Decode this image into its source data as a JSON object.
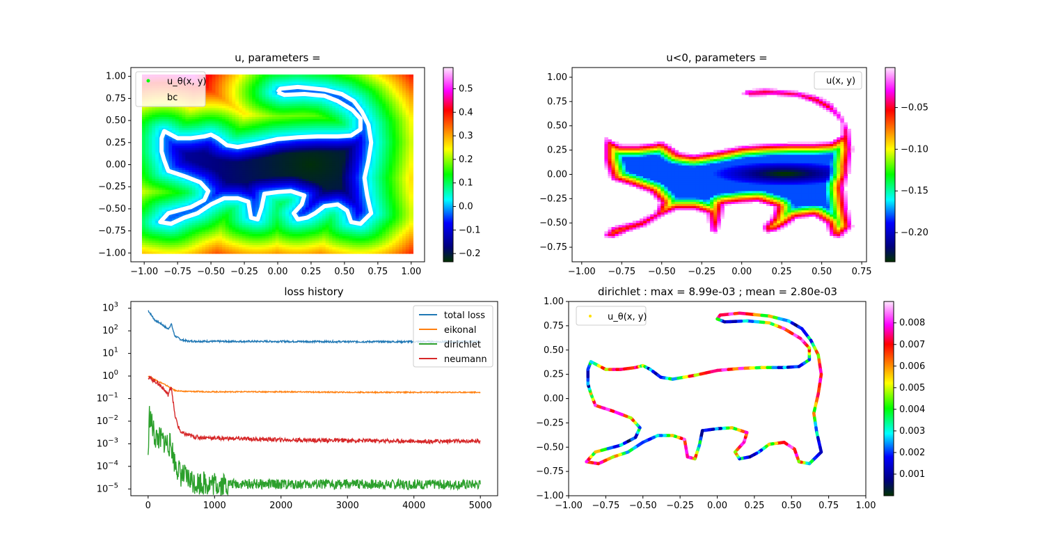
{
  "chart_data": [
    {
      "panel": "u",
      "type": "scatter",
      "title": "u, parameters =",
      "xlabel": "",
      "ylabel": "",
      "xlim": [
        -1.1,
        1.1
      ],
      "ylim": [
        -1.1,
        1.1
      ],
      "x_ticks": [
        "−1.00",
        "−0.75",
        "−0.50",
        "−0.25",
        "0.00",
        "0.25",
        "0.50",
        "0.75",
        "1.00"
      ],
      "x_tick_values": [
        -1,
        -0.75,
        -0.5,
        -0.25,
        0,
        0.25,
        0.5,
        0.75,
        1
      ],
      "y_ticks": [
        "−1.00",
        "−0.75",
        "−0.50",
        "−0.25",
        "0.00",
        "0.25",
        "0.50",
        "0.75",
        "1.00"
      ],
      "y_tick_values": [
        -1,
        -0.75,
        -0.5,
        -0.25,
        0,
        0.25,
        0.5,
        0.75,
        1
      ],
      "legend": [
        "u_θ(x, y)",
        "bc"
      ],
      "legend_position": "upper-left",
      "colorbar": {
        "min": -0.235,
        "max": 0.59,
        "ticks": [
          "−0.2",
          "−0.1",
          "0.0",
          "0.1",
          "0.2",
          "0.3",
          "0.4",
          "0.5"
        ],
        "tick_values": [
          -0.2,
          -0.1,
          0,
          0.1,
          0.2,
          0.3,
          0.4,
          0.5
        ]
      },
      "min_point": [
        0.25,
        0.0
      ]
    },
    {
      "panel": "uneg",
      "type": "scatter",
      "title": "u<0, parameters =",
      "xlabel": "",
      "ylabel": "",
      "xlim": [
        -1.06,
        0.78
      ],
      "ylim": [
        -0.9,
        1.1
      ],
      "x_ticks": [
        "−1.00",
        "−0.75",
        "−0.50",
        "−0.25",
        "0.00",
        "0.25",
        "0.50",
        "0.75"
      ],
      "x_tick_values": [
        -1,
        -0.75,
        -0.5,
        -0.25,
        0,
        0.25,
        0.5,
        0.75
      ],
      "y_ticks": [
        "−0.75",
        "−0.50",
        "−0.25",
        "0.00",
        "0.25",
        "0.50",
        "0.75",
        "1.00"
      ],
      "y_tick_values": [
        -0.75,
        -0.5,
        -0.25,
        0,
        0.25,
        0.5,
        0.75,
        1
      ],
      "legend": [
        "u(x, y)"
      ],
      "legend_position": "upper-right",
      "colorbar": {
        "min": -0.235,
        "max": -0.002,
        "ticks": [
          "−0.20",
          "−0.15",
          "−0.10",
          "−0.05"
        ],
        "tick_values": [
          -0.2,
          -0.15,
          -0.1,
          -0.05
        ]
      },
      "min_point": [
        0.27,
        0.0
      ]
    },
    {
      "panel": "loss",
      "type": "line",
      "title": "loss history",
      "xlabel": "",
      "ylabel": "",
      "y_scale": "log",
      "xlim": [
        -260,
        5260
      ],
      "ylim_log10": [
        -5.3,
        3.3
      ],
      "x_ticks": [
        "0",
        "1000",
        "2000",
        "3000",
        "4000",
        "5000"
      ],
      "x_tick_values": [
        0,
        1000,
        2000,
        3000,
        4000,
        5000
      ],
      "y_ticks": [
        "10",
        "10",
        "10",
        "10",
        "10",
        "10",
        "10",
        "10",
        "10"
      ],
      "y_tick_exponents": [
        "−5",
        "−4",
        "−3",
        "−2",
        "−1",
        "0",
        "1",
        "2",
        "3"
      ],
      "y_tick_values": [
        -5,
        -4,
        -3,
        -2,
        -1,
        0,
        1,
        2,
        3
      ],
      "legend_position": "upper-right",
      "series": [
        {
          "name": "total loss",
          "color": "#1f77b4",
          "x": [
            0,
            100,
            200,
            300,
            350,
            400,
            500,
            600,
            1000,
            2000,
            3000,
            4000,
            5000
          ],
          "values": [
            800,
            300,
            200,
            120,
            200,
            60,
            40,
            35,
            34,
            34,
            33,
            33,
            33
          ]
        },
        {
          "name": "eikonal",
          "color": "#ff7f0e",
          "x": [
            0,
            100,
            200,
            300,
            400,
            500,
            1000,
            2000,
            3000,
            4000,
            5000
          ],
          "values": [
            1.0,
            0.7,
            0.5,
            0.35,
            0.23,
            0.21,
            0.2,
            0.2,
            0.19,
            0.19,
            0.19
          ]
        },
        {
          "name": "dirichlet",
          "color": "#2ca02c",
          "x": [
            0,
            20,
            100,
            200,
            300,
            350,
            400,
            500,
            700,
            1000,
            2000,
            3000,
            4000,
            5000
          ],
          "values": [
            0.0003,
            0.02,
            0.002,
            0.0015,
            0.001,
            0.0008,
            0.00015,
            4e-05,
            2e-05,
            1.7e-05,
            1.6e-05,
            1.6e-05,
            1.6e-05,
            1.6e-05
          ]
        },
        {
          "name": "neumann",
          "color": "#d62728",
          "x": [
            0,
            100,
            200,
            300,
            350,
            400,
            450,
            500,
            700,
            1000,
            2000,
            3000,
            4000,
            5000
          ],
          "values": [
            0.9,
            0.6,
            0.35,
            0.15,
            0.35,
            0.02,
            0.006,
            0.003,
            0.002,
            0.0018,
            0.0015,
            0.0014,
            0.0013,
            0.0013
          ]
        }
      ]
    },
    {
      "panel": "dirichlet",
      "type": "scatter",
      "title": "dirichlet : max = 8.99e-03 ; mean = 2.80e-03",
      "xlabel": "",
      "ylabel": "",
      "xlim": [
        -1,
        1
      ],
      "ylim": [
        -1,
        1
      ],
      "x_ticks": [
        "−1.00",
        "−0.75",
        "−0.50",
        "−0.25",
        "0.00",
        "0.25",
        "0.50",
        "0.75",
        "1.00"
      ],
      "x_tick_values": [
        -1,
        -0.75,
        -0.5,
        -0.25,
        0,
        0.25,
        0.5,
        0.75,
        1
      ],
      "y_ticks": [
        "−1.00",
        "−0.75",
        "−0.50",
        "−0.25",
        "0.00",
        "0.25",
        "0.50",
        "0.75",
        "1.00"
      ],
      "y_tick_values": [
        -1,
        -0.75,
        -0.5,
        -0.25,
        0,
        0.25,
        0.5,
        0.75,
        1
      ],
      "legend": [
        "u_θ(x, y)"
      ],
      "legend_position": "upper-left",
      "colorbar": {
        "min": 0.0,
        "max": 0.00899,
        "ticks": [
          "0.001",
          "0.002",
          "0.003",
          "0.004",
          "0.005",
          "0.006",
          "0.007",
          "0.008"
        ],
        "tick_values": [
          0.001,
          0.002,
          0.003,
          0.004,
          0.005,
          0.006,
          0.007,
          0.008
        ]
      }
    }
  ],
  "boundary_curve": [
    [
      0.0,
      0.82
    ],
    [
      0.02,
      0.86
    ],
    [
      0.15,
      0.88
    ],
    [
      0.35,
      0.85
    ],
    [
      0.48,
      0.8
    ],
    [
      0.57,
      0.72
    ],
    [
      0.63,
      0.6
    ],
    [
      0.68,
      0.45
    ],
    [
      0.7,
      0.25
    ],
    [
      0.68,
      0.05
    ],
    [
      0.65,
      -0.15
    ],
    [
      0.67,
      -0.35
    ],
    [
      0.7,
      -0.55
    ],
    [
      0.62,
      -0.67
    ],
    [
      0.55,
      -0.65
    ],
    [
      0.52,
      -0.52
    ],
    [
      0.45,
      -0.45
    ],
    [
      0.35,
      -0.47
    ],
    [
      0.28,
      -0.55
    ],
    [
      0.22,
      -0.6
    ],
    [
      0.15,
      -0.62
    ],
    [
      0.12,
      -0.55
    ],
    [
      0.18,
      -0.45
    ],
    [
      0.2,
      -0.35
    ],
    [
      0.1,
      -0.3
    ],
    [
      0.0,
      -0.31
    ],
    [
      -0.1,
      -0.33
    ],
    [
      -0.12,
      -0.48
    ],
    [
      -0.15,
      -0.62
    ],
    [
      -0.2,
      -0.6
    ],
    [
      -0.22,
      -0.42
    ],
    [
      -0.3,
      -0.38
    ],
    [
      -0.4,
      -0.38
    ],
    [
      -0.5,
      -0.45
    ],
    [
      -0.6,
      -0.55
    ],
    [
      -0.7,
      -0.6
    ],
    [
      -0.8,
      -0.67
    ],
    [
      -0.88,
      -0.65
    ],
    [
      -0.82,
      -0.55
    ],
    [
      -0.65,
      -0.48
    ],
    [
      -0.55,
      -0.4
    ],
    [
      -0.52,
      -0.3
    ],
    [
      -0.58,
      -0.2
    ],
    [
      -0.7,
      -0.13
    ],
    [
      -0.82,
      -0.07
    ],
    [
      -0.85,
      0.05
    ],
    [
      -0.87,
      0.15
    ],
    [
      -0.87,
      0.3
    ],
    [
      -0.85,
      0.38
    ],
    [
      -0.75,
      0.3
    ],
    [
      -0.65,
      0.3
    ],
    [
      -0.55,
      0.32
    ],
    [
      -0.5,
      0.34
    ],
    [
      -0.45,
      0.3
    ],
    [
      -0.38,
      0.22
    ],
    [
      -0.3,
      0.2
    ],
    [
      -0.15,
      0.24
    ],
    [
      0.0,
      0.29
    ],
    [
      0.15,
      0.31
    ],
    [
      0.3,
      0.32
    ],
    [
      0.45,
      0.32
    ],
    [
      0.55,
      0.33
    ],
    [
      0.62,
      0.4
    ],
    [
      0.62,
      0.52
    ],
    [
      0.56,
      0.62
    ],
    [
      0.45,
      0.72
    ],
    [
      0.35,
      0.78
    ],
    [
      0.2,
      0.8
    ],
    [
      0.05,
      0.79
    ],
    [
      0.0,
      0.82
    ]
  ],
  "colormap": [
    "#003300",
    "#00007f",
    "#0000ff",
    "#00ffff",
    "#00ff00",
    "#ffff00",
    "#ff7f00",
    "#ff0000",
    "#ff00ff",
    "#ffe0ff"
  ]
}
